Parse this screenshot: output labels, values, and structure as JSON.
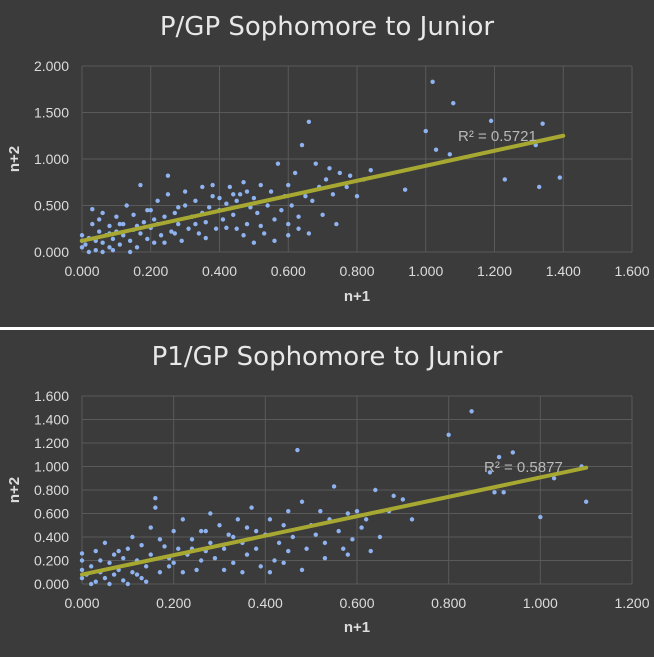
{
  "colors": {
    "background": "#3b3b3b",
    "points": "#8fb3f0",
    "trendline": "#a7a832",
    "grid": "#5a5a5a"
  },
  "chart_data": [
    {
      "type": "scatter",
      "title": "P/GP Sophomore to Junior",
      "xlabel": "n+1",
      "ylabel": "n+2",
      "xlim": [
        0,
        1.6
      ],
      "ylim": [
        0,
        2.0
      ],
      "x_ticks": [
        "0.000",
        "0.200",
        "0.400",
        "0.600",
        "0.800",
        "1.000",
        "1.200",
        "1.400",
        "1.600"
      ],
      "y_ticks": [
        "0.000",
        "0.500",
        "1.000",
        "1.500",
        "2.000"
      ],
      "grid": true,
      "trendline": {
        "x0": 0.0,
        "y0": 0.12,
        "x1": 1.4,
        "y1": 1.25,
        "r2_text": "R² = 0.5721"
      },
      "points": [
        [
          0.0,
          0.05
        ],
        [
          0.0,
          0.12
        ],
        [
          0.0,
          0.18
        ],
        [
          0.01,
          0.08
        ],
        [
          0.02,
          0.15
        ],
        [
          0.03,
          0.3
        ],
        [
          0.03,
          0.46
        ],
        [
          0.04,
          0.02
        ],
        [
          0.05,
          0.22
        ],
        [
          0.05,
          0.35
        ],
        [
          0.06,
          0.1
        ],
        [
          0.06,
          0.42
        ],
        [
          0.07,
          0.18
        ],
        [
          0.08,
          0.05
        ],
        [
          0.08,
          0.28
        ],
        [
          0.09,
          0.14
        ],
        [
          0.1,
          0.22
        ],
        [
          0.1,
          0.38
        ],
        [
          0.11,
          0.08
        ],
        [
          0.12,
          0.18
        ],
        [
          0.12,
          0.3
        ],
        [
          0.13,
          0.5
        ],
        [
          0.14,
          0.12
        ],
        [
          0.15,
          0.24
        ],
        [
          0.15,
          0.4
        ],
        [
          0.16,
          0.05
        ],
        [
          0.17,
          0.2
        ],
        [
          0.17,
          0.72
        ],
        [
          0.18,
          0.32
        ],
        [
          0.19,
          0.14
        ],
        [
          0.2,
          0.26
        ],
        [
          0.2,
          0.45
        ],
        [
          0.21,
          0.1
        ],
        [
          0.22,
          0.3
        ],
        [
          0.22,
          0.55
        ],
        [
          0.23,
          0.18
        ],
        [
          0.24,
          0.38
        ],
        [
          0.25,
          0.62
        ],
        [
          0.25,
          0.82
        ],
        [
          0.26,
          0.22
        ],
        [
          0.27,
          0.42
        ],
        [
          0.28,
          0.3
        ],
        [
          0.29,
          0.12
        ],
        [
          0.3,
          0.5
        ],
        [
          0.3,
          0.65
        ],
        [
          0.31,
          0.25
        ],
        [
          0.32,
          0.38
        ],
        [
          0.33,
          0.55
        ],
        [
          0.34,
          0.2
        ],
        [
          0.35,
          0.42
        ],
        [
          0.35,
          0.7
        ],
        [
          0.36,
          0.32
        ],
        [
          0.37,
          0.48
        ],
        [
          0.38,
          0.6
        ],
        [
          0.39,
          0.25
        ],
        [
          0.4,
          0.45
        ],
        [
          0.4,
          0.58
        ],
        [
          0.41,
          0.35
        ],
        [
          0.42,
          0.52
        ],
        [
          0.43,
          0.7
        ],
        [
          0.44,
          0.4
        ],
        [
          0.45,
          0.55
        ],
        [
          0.45,
          0.25
        ],
        [
          0.46,
          0.62
        ],
        [
          0.47,
          0.75
        ],
        [
          0.48,
          0.3
        ],
        [
          0.49,
          0.48
        ],
        [
          0.5,
          0.1
        ],
        [
          0.5,
          0.58
        ],
        [
          0.51,
          0.42
        ],
        [
          0.52,
          0.72
        ],
        [
          0.53,
          0.2
        ],
        [
          0.54,
          0.5
        ],
        [
          0.55,
          0.65
        ],
        [
          0.56,
          0.35
        ],
        [
          0.57,
          0.95
        ],
        [
          0.58,
          0.45
        ],
        [
          0.59,
          0.6
        ],
        [
          0.6,
          0.3
        ],
        [
          0.6,
          0.72
        ],
        [
          0.61,
          0.5
        ],
        [
          0.62,
          0.85
        ],
        [
          0.63,
          0.38
        ],
        [
          0.64,
          1.15
        ],
        [
          0.65,
          0.6
        ],
        [
          0.66,
          1.4
        ],
        [
          0.67,
          0.55
        ],
        [
          0.68,
          0.95
        ],
        [
          0.69,
          0.7
        ],
        [
          0.7,
          0.4
        ],
        [
          0.71,
          0.78
        ],
        [
          0.72,
          0.9
        ],
        [
          0.73,
          0.62
        ],
        [
          0.75,
          0.85
        ],
        [
          0.77,
          0.7
        ],
        [
          0.78,
          0.82
        ],
        [
          0.8,
          0.6
        ],
        [
          0.82,
          0.78
        ],
        [
          0.84,
          0.88
        ],
        [
          0.94,
          0.67
        ],
        [
          1.0,
          1.3
        ],
        [
          1.02,
          1.83
        ],
        [
          1.03,
          1.1
        ],
        [
          1.07,
          1.05
        ],
        [
          1.08,
          1.6
        ],
        [
          1.19,
          1.41
        ],
        [
          1.23,
          0.78
        ],
        [
          1.32,
          1.15
        ],
        [
          1.33,
          0.7
        ],
        [
          1.34,
          1.38
        ],
        [
          1.39,
          0.8
        ],
        [
          0.02,
          0.0
        ],
        [
          0.06,
          0.0
        ],
        [
          0.09,
          0.02
        ],
        [
          0.14,
          0.0
        ],
        [
          0.11,
          0.3
        ],
        [
          0.19,
          0.45
        ],
        [
          0.24,
          0.1
        ],
        [
          0.28,
          0.48
        ],
        [
          0.36,
          0.15
        ],
        [
          0.42,
          0.26
        ],
        [
          0.47,
          0.18
        ],
        [
          0.52,
          0.28
        ],
        [
          0.56,
          0.12
        ],
        [
          0.6,
          0.18
        ],
        [
          0.63,
          0.25
        ],
        [
          0.66,
          0.2
        ],
        [
          0.74,
          0.3
        ],
        [
          0.38,
          0.72
        ],
        [
          0.44,
          0.62
        ],
        [
          0.48,
          0.65
        ],
        [
          0.33,
          0.3
        ],
        [
          0.27,
          0.2
        ],
        [
          0.21,
          0.35
        ],
        [
          0.16,
          0.28
        ],
        [
          0.08,
          0.2
        ],
        [
          0.04,
          0.12
        ]
      ]
    },
    {
      "type": "scatter",
      "title": "P1/GP Sophomore to Junior",
      "xlabel": "n+1",
      "ylabel": "n+2",
      "xlim": [
        0,
        1.2
      ],
      "ylim": [
        0,
        1.6
      ],
      "x_ticks": [
        "0.000",
        "0.200",
        "0.400",
        "0.600",
        "0.800",
        "1.000",
        "1.200"
      ],
      "y_ticks": [
        "0.000",
        "0.200",
        "0.400",
        "0.600",
        "0.800",
        "1.000",
        "1.200",
        "1.400",
        "1.600"
      ],
      "grid": true,
      "trendline": {
        "x0": 0.0,
        "y0": 0.08,
        "x1": 1.1,
        "y1": 0.99,
        "r2_text": "R² = 0.5877"
      },
      "points": [
        [
          0.0,
          0.05
        ],
        [
          0.0,
          0.12
        ],
        [
          0.0,
          0.2
        ],
        [
          0.0,
          0.26
        ],
        [
          0.01,
          0.08
        ],
        [
          0.02,
          0.15
        ],
        [
          0.03,
          0.02
        ],
        [
          0.03,
          0.28
        ],
        [
          0.04,
          0.1
        ],
        [
          0.05,
          0.05
        ],
        [
          0.05,
          0.35
        ],
        [
          0.06,
          0.18
        ],
        [
          0.07,
          0.08
        ],
        [
          0.07,
          0.25
        ],
        [
          0.08,
          0.12
        ],
        [
          0.09,
          0.03
        ],
        [
          0.09,
          0.22
        ],
        [
          0.1,
          0.3
        ],
        [
          0.11,
          0.1
        ],
        [
          0.11,
          0.4
        ],
        [
          0.12,
          0.2
        ],
        [
          0.13,
          0.05
        ],
        [
          0.13,
          0.33
        ],
        [
          0.14,
          0.15
        ],
        [
          0.15,
          0.48
        ],
        [
          0.15,
          0.25
        ],
        [
          0.16,
          0.73
        ],
        [
          0.16,
          0.65
        ],
        [
          0.17,
          0.1
        ],
        [
          0.18,
          0.32
        ],
        [
          0.19,
          0.22
        ],
        [
          0.2,
          0.45
        ],
        [
          0.2,
          0.18
        ],
        [
          0.21,
          0.3
        ],
        [
          0.22,
          0.55
        ],
        [
          0.23,
          0.25
        ],
        [
          0.24,
          0.38
        ],
        [
          0.25,
          0.12
        ],
        [
          0.26,
          0.45
        ],
        [
          0.27,
          0.28
        ],
        [
          0.28,
          0.6
        ],
        [
          0.28,
          0.35
        ],
        [
          0.29,
          0.22
        ],
        [
          0.3,
          0.5
        ],
        [
          0.31,
          0.3
        ],
        [
          0.32,
          0.42
        ],
        [
          0.33,
          0.18
        ],
        [
          0.34,
          0.55
        ],
        [
          0.35,
          0.35
        ],
        [
          0.35,
          0.1
        ],
        [
          0.36,
          0.48
        ],
        [
          0.37,
          0.65
        ],
        [
          0.38,
          0.3
        ],
        [
          0.39,
          0.15
        ],
        [
          0.4,
          0.42
        ],
        [
          0.41,
          0.55
        ],
        [
          0.42,
          0.2
        ],
        [
          0.43,
          0.35
        ],
        [
          0.44,
          0.5
        ],
        [
          0.45,
          0.28
        ],
        [
          0.45,
          0.62
        ],
        [
          0.46,
          0.4
        ],
        [
          0.47,
          1.14
        ],
        [
          0.48,
          0.7
        ],
        [
          0.49,
          0.3
        ],
        [
          0.5,
          0.5
        ],
        [
          0.51,
          0.42
        ],
        [
          0.52,
          0.62
        ],
        [
          0.53,
          0.35
        ],
        [
          0.54,
          0.55
        ],
        [
          0.55,
          0.83
        ],
        [
          0.56,
          0.45
        ],
        [
          0.57,
          0.3
        ],
        [
          0.58,
          0.6
        ],
        [
          0.59,
          0.38
        ],
        [
          0.6,
          0.62
        ],
        [
          0.61,
          0.48
        ],
        [
          0.62,
          0.55
        ],
        [
          0.64,
          0.8
        ],
        [
          0.65,
          0.4
        ],
        [
          0.67,
          0.62
        ],
        [
          0.68,
          0.75
        ],
        [
          0.7,
          0.72
        ],
        [
          0.72,
          0.55
        ],
        [
          0.8,
          1.27
        ],
        [
          0.85,
          1.47
        ],
        [
          0.89,
          0.95
        ],
        [
          0.9,
          0.78
        ],
        [
          0.91,
          1.08
        ],
        [
          0.92,
          0.78
        ],
        [
          0.94,
          1.12
        ],
        [
          1.0,
          0.57
        ],
        [
          1.03,
          0.9
        ],
        [
          1.09,
          1.0
        ],
        [
          1.1,
          0.7
        ],
        [
          0.02,
          0.0
        ],
        [
          0.06,
          0.0
        ],
        [
          0.1,
          0.0
        ],
        [
          0.14,
          0.02
        ],
        [
          0.04,
          0.2
        ],
        [
          0.08,
          0.28
        ],
        [
          0.12,
          0.08
        ],
        [
          0.17,
          0.38
        ],
        [
          0.22,
          0.1
        ],
        [
          0.26,
          0.2
        ],
        [
          0.31,
          0.12
        ],
        [
          0.36,
          0.25
        ],
        [
          0.41,
          0.1
        ],
        [
          0.44,
          0.18
        ],
        [
          0.48,
          0.12
        ],
        [
          0.53,
          0.22
        ],
        [
          0.58,
          0.25
        ],
        [
          0.63,
          0.28
        ],
        [
          0.24,
          0.3
        ],
        [
          0.33,
          0.4
        ],
        [
          0.19,
          0.15
        ],
        [
          0.27,
          0.45
        ],
        [
          0.38,
          0.45
        ]
      ]
    }
  ]
}
